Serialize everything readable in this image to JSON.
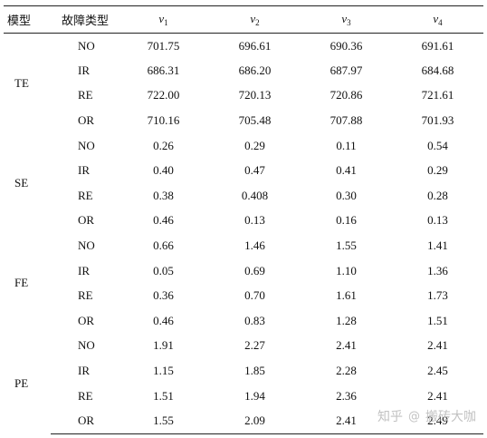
{
  "headers": {
    "model": "模型",
    "fault_type": "故障类型",
    "v_symbol": "v",
    "v_subscripts": [
      "1",
      "2",
      "3",
      "4"
    ]
  },
  "groups": [
    {
      "model": "TE",
      "rows": [
        {
          "fault": "NO",
          "values": [
            "701.75",
            "696.61",
            "690.36",
            "691.61"
          ]
        },
        {
          "fault": "IR",
          "values": [
            "686.31",
            "686.20",
            "687.97",
            "684.68"
          ]
        },
        {
          "fault": "RE",
          "values": [
            "722.00",
            "720.13",
            "720.86",
            "721.61"
          ]
        },
        {
          "fault": "OR",
          "values": [
            "710.16",
            "705.48",
            "707.88",
            "701.93"
          ]
        }
      ]
    },
    {
      "model": "SE",
      "rows": [
        {
          "fault": "NO",
          "values": [
            "0.26",
            "0.29",
            "0.11",
            "0.54"
          ]
        },
        {
          "fault": "IR",
          "values": [
            "0.40",
            "0.47",
            "0.41",
            "0.29"
          ]
        },
        {
          "fault": "RE",
          "values": [
            "0.38",
            "0.408",
            "0.30",
            "0.28"
          ]
        },
        {
          "fault": "OR",
          "values": [
            "0.46",
            "0.13",
            "0.16",
            "0.13"
          ]
        }
      ]
    },
    {
      "model": "FE",
      "rows": [
        {
          "fault": "NO",
          "values": [
            "0.66",
            "1.46",
            "1.55",
            "1.41"
          ]
        },
        {
          "fault": "IR",
          "values": [
            "0.05",
            "0.69",
            "1.10",
            "1.36"
          ]
        },
        {
          "fault": "RE",
          "values": [
            "0.36",
            "0.70",
            "1.61",
            "1.73"
          ]
        },
        {
          "fault": "OR",
          "values": [
            "0.46",
            "0.83",
            "1.28",
            "1.51"
          ]
        }
      ]
    },
    {
      "model": "PE",
      "rows": [
        {
          "fault": "NO",
          "values": [
            "1.91",
            "2.27",
            "2.41",
            "2.41"
          ]
        },
        {
          "fault": "IR",
          "values": [
            "1.15",
            "1.85",
            "2.28",
            "2.45"
          ]
        },
        {
          "fault": "RE",
          "values": [
            "1.51",
            "1.94",
            "2.36",
            "2.41"
          ]
        },
        {
          "fault": "OR",
          "values": [
            "1.55",
            "2.09",
            "2.41",
            "2.49"
          ]
        }
      ]
    }
  ],
  "watermark": {
    "site": "知乎",
    "at": "@",
    "user": "搬砖大咖"
  }
}
